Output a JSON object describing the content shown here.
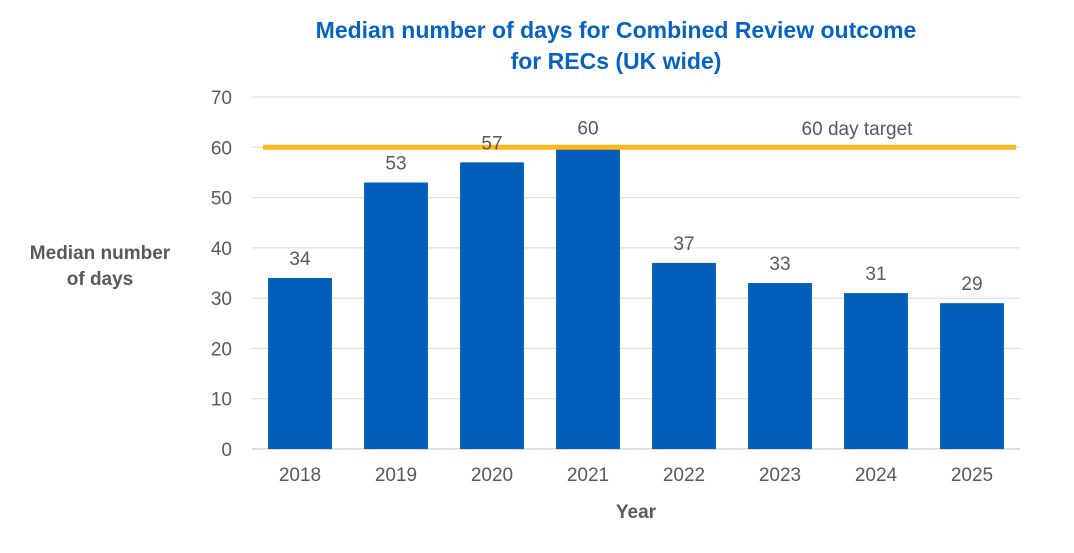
{
  "chart_data": {
    "type": "bar",
    "title_line1": "Median number of days for Combined Review outcome",
    "title_line2": "for RECs (UK wide)",
    "xlabel": "Year",
    "ylabel_line1": "Median number",
    "ylabel_line2": "of days",
    "categories": [
      "2018",
      "2019",
      "2020",
      "2021",
      "2022",
      "2023",
      "2024",
      "2025"
    ],
    "values": [
      34,
      53,
      57,
      60,
      37,
      33,
      31,
      29
    ],
    "ylim": [
      0,
      70
    ],
    "yticks": [
      0,
      10,
      20,
      30,
      40,
      50,
      60,
      70
    ],
    "grid": true,
    "bar_color": "#005EB8",
    "target": {
      "value": 60,
      "label": "60 day target",
      "color": "#FFB81C"
    }
  }
}
